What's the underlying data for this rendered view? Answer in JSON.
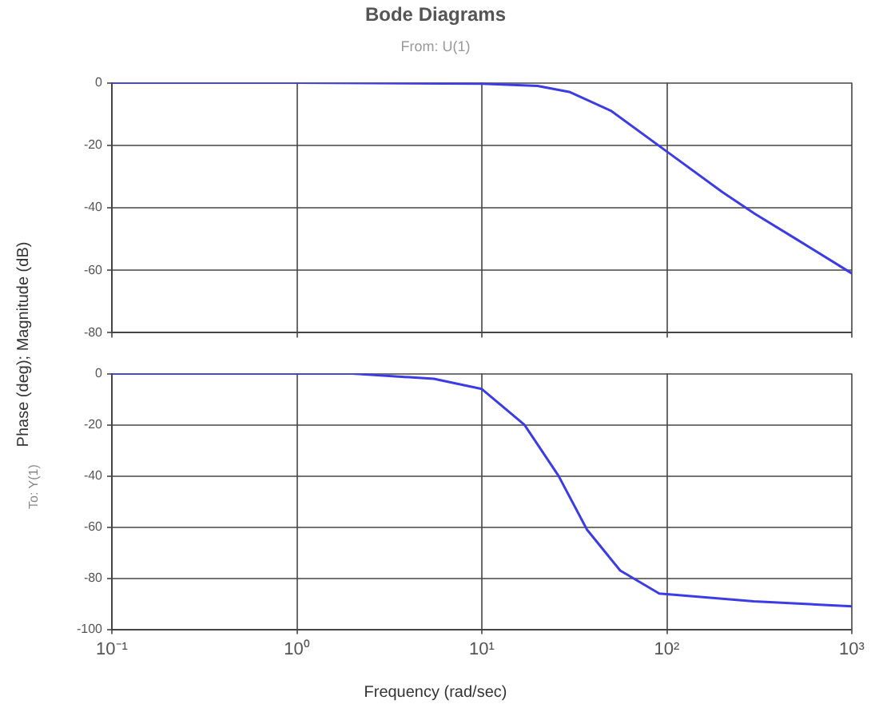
{
  "chart_data": [
    {
      "type": "line",
      "title": "Bode Diagrams",
      "subtitle": "From: U(1)",
      "ylabel": "Phase (deg); Magnitude (dB)",
      "x": [
        0.1,
        1,
        10,
        20,
        30,
        50,
        100,
        200,
        300,
        500,
        1000
      ],
      "series": [
        {
          "color": "#3c3ce6",
          "values": [
            0,
            0,
            -0.3,
            -1,
            -3,
            -9,
            -22,
            -35,
            -42,
            -50,
            -61
          ]
        }
      ],
      "log": "x",
      "xlim": [
        0.1,
        1000
      ],
      "xticks": [
        0.1,
        1,
        10,
        100,
        1000
      ],
      "ylim": [
        -80,
        0
      ],
      "yticks": [
        -80,
        -60,
        -40,
        -20,
        0
      ],
      "grid": true,
      "tick_labels": "y"
    },
    {
      "type": "line",
      "ylabel": "To: Y(1)",
      "xlabel": "Frequency (rad/sec)",
      "x": [
        0.1,
        1,
        2,
        5.5,
        10,
        17,
        26,
        37,
        56,
        91,
        295,
        1000
      ],
      "series": [
        {
          "color": "#3c3ce6",
          "values": [
            0,
            0,
            0,
            -2,
            -6,
            -20,
            -40,
            -61,
            -77,
            -86,
            -89,
            -91
          ]
        }
      ],
      "log": "x",
      "xlim": [
        0.1,
        1000
      ],
      "xticks": [
        {
          "value": 0.1,
          "label": "10⁻¹"
        },
        {
          "value": 1,
          "label": "10⁰"
        },
        {
          "value": 10,
          "label": "10¹"
        },
        {
          "value": 100,
          "label": "10²"
        },
        {
          "value": 1000,
          "label": "10³"
        }
      ],
      "ylim": [
        -100,
        0
      ],
      "yticks": [
        -100,
        -80,
        -60,
        -40,
        -20,
        0
      ],
      "grid": true
    }
  ]
}
